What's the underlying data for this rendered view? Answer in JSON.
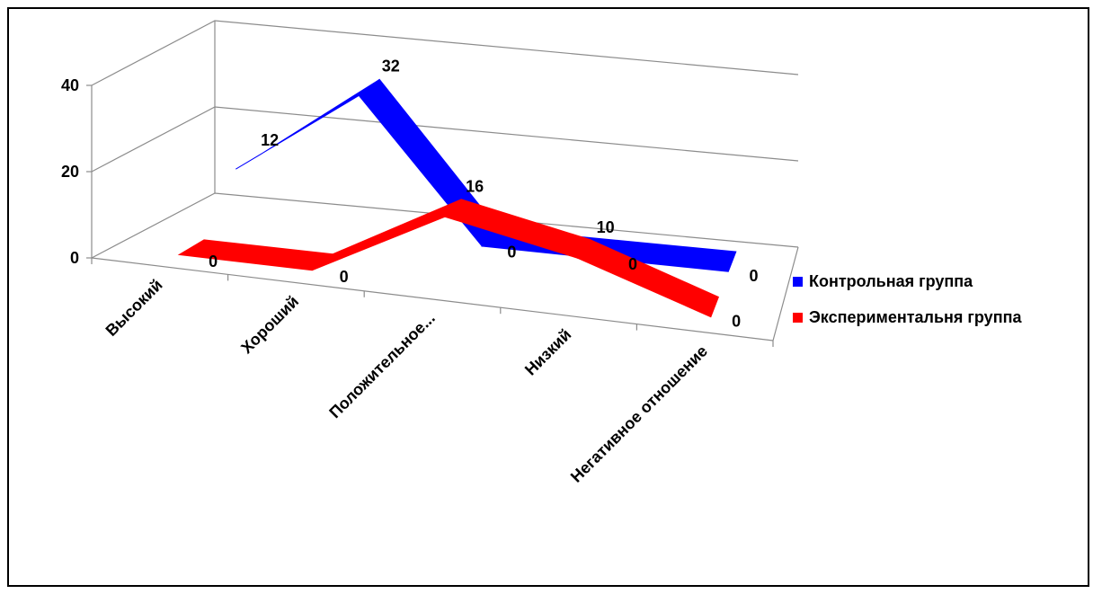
{
  "chart_data": {
    "type": "line",
    "subtype": "3d-line",
    "title": "",
    "xlabel": "",
    "ylabel": "",
    "ylim": [
      0,
      40
    ],
    "yticks": [
      0,
      20,
      40
    ],
    "grid": true,
    "legend_position": "right",
    "categories": [
      "Высокий",
      "Хороший",
      "Положительное...",
      "Низкий",
      "Негативное отношение"
    ],
    "series": [
      {
        "name": "Контрольная группа",
        "color": "#0000ff",
        "values": [
          12,
          32,
          0,
          0,
          0
        ],
        "labels": [
          "12",
          "32",
          "0",
          "0",
          "0"
        ]
      },
      {
        "name": "Экспериментальня группа",
        "color": "#ff0000",
        "values": [
          0,
          0,
          16,
          10,
          0
        ],
        "labels": [
          "0",
          "0",
          "16",
          "10",
          "0"
        ]
      }
    ]
  }
}
